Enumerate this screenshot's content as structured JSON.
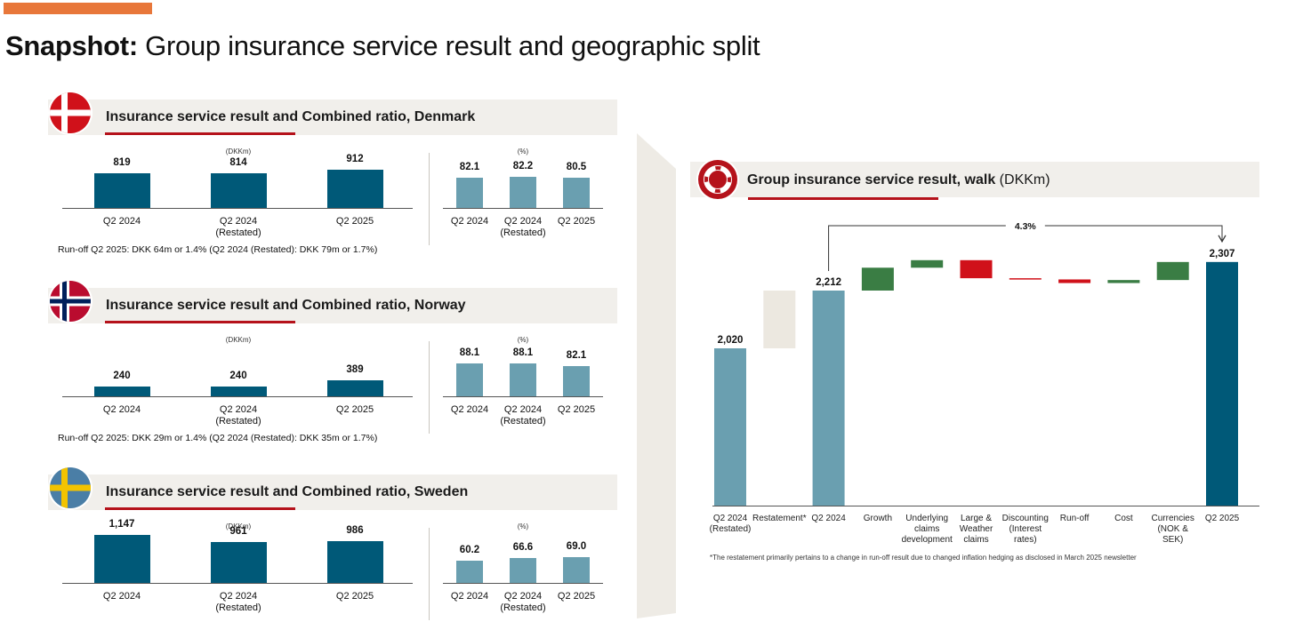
{
  "page": {
    "title_bold": "Snapshot:",
    "title_rest": " Group insurance service result and geographic split"
  },
  "colors": {
    "accent": "#e8773a",
    "bar_dark": "#005978",
    "bar_light": "#6a9fb0",
    "red_accent": "#b5121b",
    "walk_green": "#3a7d44",
    "walk_red": "#d0111a",
    "restatement_fill": "#ece8e0"
  },
  "regions": [
    {
      "id": "denmark",
      "flag_icon": "denmark-flag-icon",
      "title": "Insurance service result and Combined ratio, Denmark",
      "isr_unit": "(DKKm)",
      "cr_unit": "(%)",
      "note": "Run-off Q2 2025: DKK 64m or 1.4% (Q2 2024 (Restated): DKK 79m or 1.7%)",
      "isr": {
        "categories": [
          [
            "Q2 2024"
          ],
          [
            "Q2 2024",
            "(Restated)"
          ],
          [
            "Q2 2025"
          ]
        ],
        "values": [
          819,
          814,
          912
        ],
        "labels": [
          "819",
          "814",
          "912"
        ]
      },
      "cr": {
        "categories": [
          [
            "Q2 2024"
          ],
          [
            "Q2 2024",
            "(Restated)"
          ],
          [
            "Q2 2025"
          ]
        ],
        "values": [
          82.1,
          82.2,
          80.5
        ],
        "labels": [
          "82.1",
          "82.2",
          "80.5"
        ]
      }
    },
    {
      "id": "norway",
      "flag_icon": "norway-flag-icon",
      "title": "Insurance service result and Combined ratio, Norway",
      "isr_unit": "(DKKm)",
      "cr_unit": "(%)",
      "note": "Run-off Q2 2025: DKK 29m or 1.4% (Q2 2024 (Restated): DKK 35m or 1.7%)",
      "isr": {
        "categories": [
          [
            "Q2 2024"
          ],
          [
            "Q2 2024",
            "(Restated)"
          ],
          [
            "Q2 2025"
          ]
        ],
        "values": [
          240,
          240,
          389
        ],
        "labels": [
          "240",
          "240",
          "389"
        ]
      },
      "cr": {
        "categories": [
          [
            "Q2 2024"
          ],
          [
            "Q2 2024",
            "(Restated)"
          ],
          [
            "Q2 2025"
          ]
        ],
        "values": [
          88.1,
          88.1,
          82.1
        ],
        "labels": [
          "88.1",
          "88.1",
          "82.1"
        ]
      }
    },
    {
      "id": "sweden",
      "flag_icon": "sweden-flag-icon",
      "title": "Insurance service result and Combined ratio, Sweden",
      "isr_unit": "(DKKm)",
      "cr_unit": "(%)",
      "note": "",
      "isr": {
        "categories": [
          [
            "Q2 2024"
          ],
          [
            "Q2 2024",
            "(Restated)"
          ],
          [
            "Q2 2025"
          ]
        ],
        "values": [
          1147,
          961,
          986
        ],
        "labels": [
          "1,147",
          "961",
          "986"
        ]
      },
      "cr": {
        "categories": [
          [
            "Q2 2024"
          ],
          [
            "Q2 2024",
            "(Restated)"
          ],
          [
            "Q2 2025"
          ]
        ],
        "values": [
          60.2,
          66.6,
          69.0
        ],
        "labels": [
          "60.2",
          "66.6",
          "69.0"
        ]
      }
    }
  ],
  "walk": {
    "icon": "lifebuoy-icon",
    "title_bold": "Group insurance service result, walk",
    "title_unit": " (DKKm)",
    "growth_label": "4.3%",
    "footnote": "*The restatement primarily pertains to a change in run-off result due to changed inflation hedging as disclosed in March 2025 newsletter"
  },
  "chart_data": [
    {
      "type": "bar",
      "title": "Insurance service result and Combined ratio, Denmark",
      "categories": [
        "Q2 2024",
        "Q2 2024 (Restated)",
        "Q2 2025"
      ],
      "series": [
        {
          "name": "(DKKm)",
          "values": [
            819,
            814,
            912
          ]
        },
        {
          "name": "(%)",
          "values": [
            82.1,
            82.2,
            80.5
          ]
        }
      ]
    },
    {
      "type": "bar",
      "title": "Insurance service result and Combined ratio, Norway",
      "categories": [
        "Q2 2024",
        "Q2 2024 (Restated)",
        "Q2 2025"
      ],
      "series": [
        {
          "name": "(DKKm)",
          "values": [
            240,
            240,
            389
          ]
        },
        {
          "name": "(%)",
          "values": [
            88.1,
            88.1,
            82.1
          ]
        }
      ]
    },
    {
      "type": "bar",
      "title": "Insurance service result and Combined ratio, Sweden",
      "categories": [
        "Q2 2024",
        "Q2 2024 (Restated)",
        "Q2 2025"
      ],
      "series": [
        {
          "name": "(DKKm)",
          "values": [
            1147,
            961,
            986
          ]
        },
        {
          "name": "(%)",
          "values": [
            60.2,
            66.6,
            69.0
          ]
        }
      ]
    },
    {
      "type": "bar",
      "title": "Group insurance service result, walk (DKKm)",
      "ylim": [
        0,
        2400
      ],
      "steps": [
        {
          "label": [
            "Q2 2024",
            "(Restated)"
          ],
          "kind": "total",
          "start": 0,
          "end": 2020,
          "value_label": "2,020"
        },
        {
          "label": [
            "Restatement*"
          ],
          "kind": "restatement",
          "start": 2020,
          "end": 2212
        },
        {
          "label": [
            "Q2 2024"
          ],
          "kind": "total",
          "start": 0,
          "end": 2212,
          "value_label": "2,212"
        },
        {
          "label": [
            "Growth"
          ],
          "kind": "up",
          "start": 2212,
          "end": 2288
        },
        {
          "label": [
            "Underlying",
            "claims",
            "development"
          ],
          "kind": "up",
          "start": 2288,
          "end": 2313
        },
        {
          "label": [
            "Large &",
            "Weather",
            "claims"
          ],
          "kind": "down",
          "start": 2313,
          "end": 2253
        },
        {
          "label": [
            "Discounting",
            "(Interest",
            "rates)"
          ],
          "kind": "down",
          "start": 2253,
          "end": 2249
        },
        {
          "label": [
            "Run-off"
          ],
          "kind": "down",
          "start": 2249,
          "end": 2237
        },
        {
          "label": [
            "Cost"
          ],
          "kind": "up",
          "start": 2237,
          "end": 2247
        },
        {
          "label": [
            "Currencies",
            "(NOK &",
            "SEK)"
          ],
          "kind": "up",
          "start": 2247,
          "end": 2307
        },
        {
          "label": [
            "Q2 2025"
          ],
          "kind": "total_dark",
          "start": 0,
          "end": 2307,
          "value_label": "2,307"
        }
      ]
    }
  ]
}
